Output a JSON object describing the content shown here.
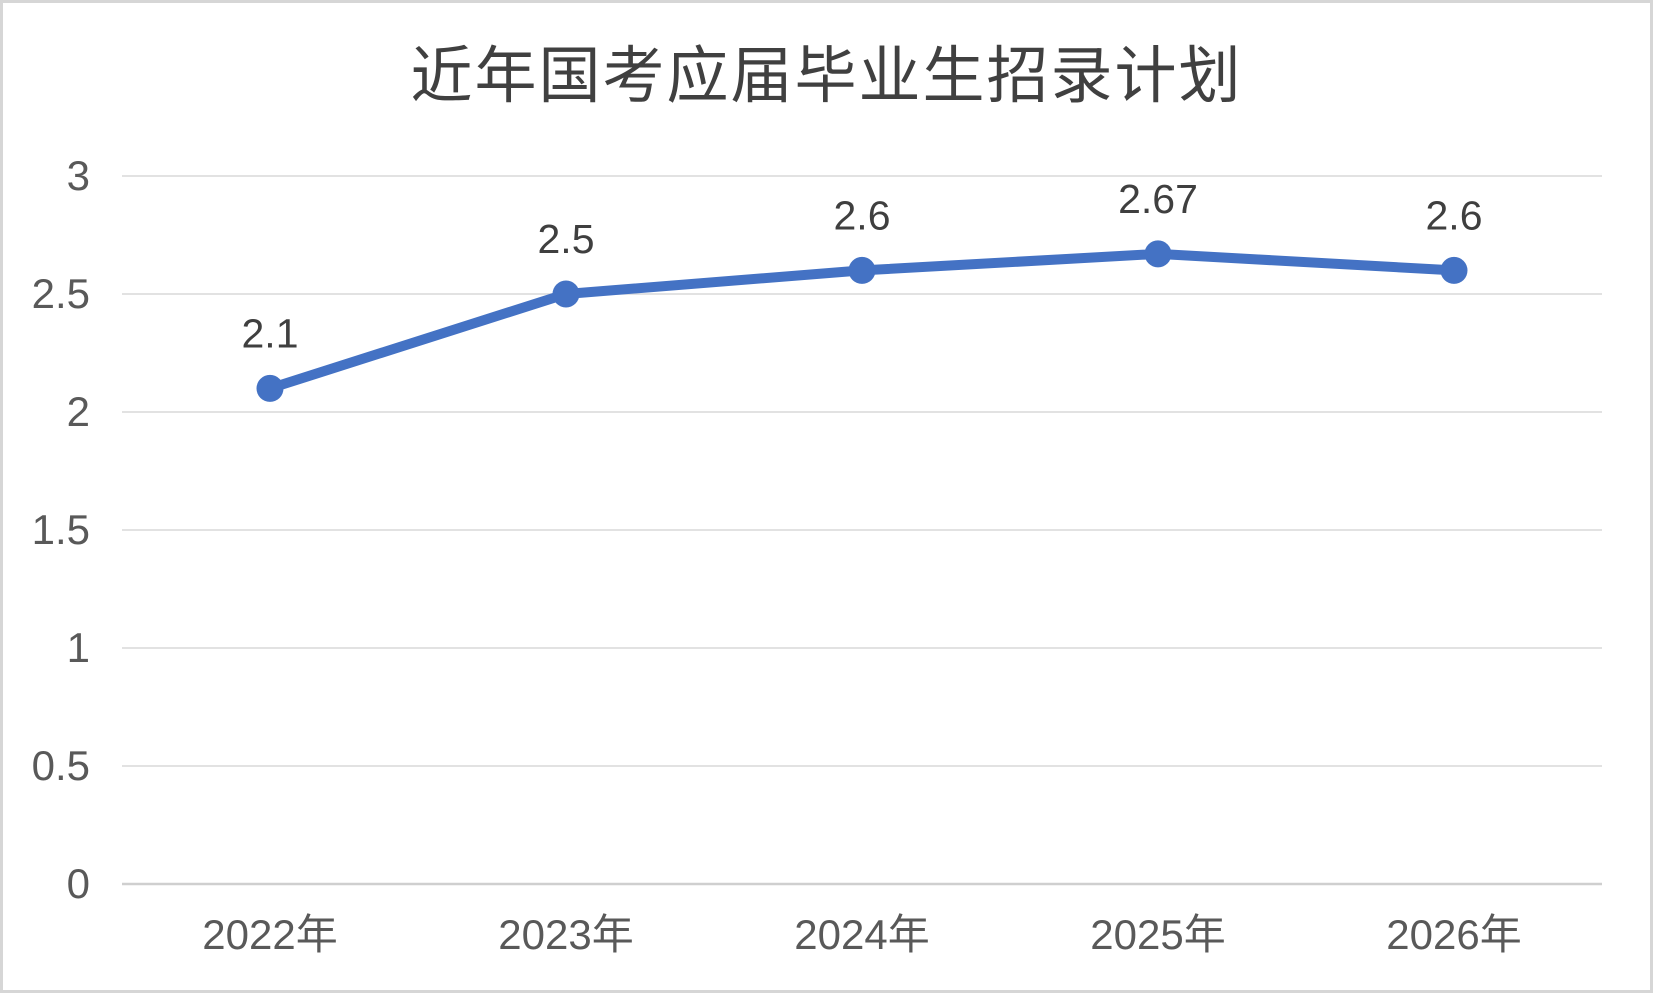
{
  "chart_data": {
    "type": "line",
    "title": "近年国考应届毕业生招录计划",
    "categories": [
      "2022年",
      "2023年",
      "2024年",
      "2025年",
      "2026年"
    ],
    "values": [
      2.1,
      2.5,
      2.6,
      2.67,
      2.6
    ],
    "data_labels": [
      "2.1",
      "2.5",
      "2.6",
      "2.67",
      "2.6"
    ],
    "y_ticks": [
      "3",
      "2.5",
      "2",
      "1.5",
      "1",
      "0.5",
      "0"
    ],
    "ylim": [
      0,
      3
    ],
    "y_tick_step": 0.5,
    "xlabel": "",
    "ylabel": "",
    "grid": "horizontal",
    "legend": "none",
    "colors": {
      "line": "#4472C4",
      "marker": "#4472C4",
      "gridline": "#D9D9D9",
      "axis_line": "#CFCFCF",
      "title_text": "#404040",
      "tick_text": "#595959",
      "data_label_text": "#3F3F3F",
      "background": "#FFFFFF",
      "frame_border": "#D6D6D6"
    }
  }
}
